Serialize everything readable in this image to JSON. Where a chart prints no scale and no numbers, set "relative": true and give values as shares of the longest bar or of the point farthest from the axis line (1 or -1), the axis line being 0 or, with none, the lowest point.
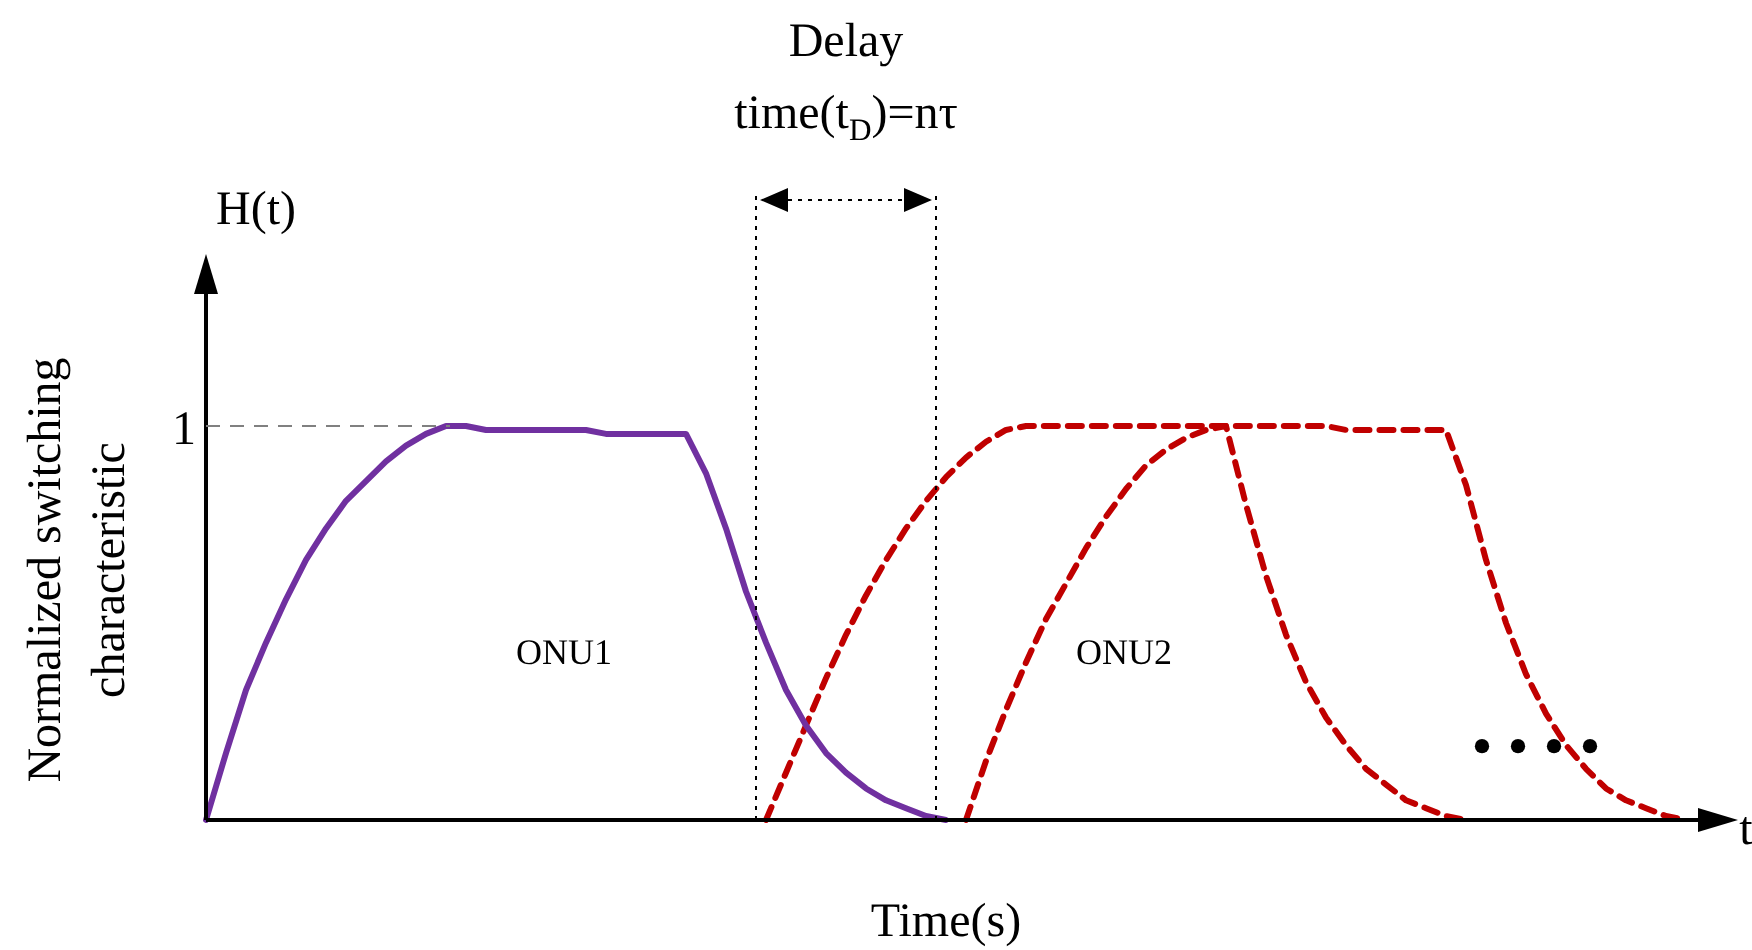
{
  "chart_data": {
    "type": "line",
    "relative": true,
    "ylabel": "Normalized switching characteristic",
    "xlabel": "Time(s)",
    "legend": false,
    "marker": "none",
    "annotations": [
      "Delay time(t$_{D}$)=nτ",
      "H(t)",
      "t",
      "1",
      "ONU1",
      "ONU2",
      "• • • •"
    ],
    "categories": [
      null,
      null,
      null,
      null,
      null,
      null,
      null,
      null,
      null,
      null,
      null,
      null,
      null,
      null,
      null,
      null,
      null,
      null,
      null,
      null,
      null,
      null,
      null,
      null,
      null,
      null,
      null,
      null,
      null,
      null,
      null,
      null,
      null,
      null,
      null,
      null,
      null,
      null,
      null,
      null,
      null,
      null,
      null,
      null,
      null,
      null,
      null,
      null,
      null,
      null,
      null,
      null,
      null,
      null,
      null,
      null,
      null,
      null,
      null,
      null,
      null,
      null,
      null,
      null,
      null,
      null,
      null,
      null,
      null,
      null,
      null,
      null,
      null,
      null,
      null
    ],
    "series": [
      {
        "color": "#7030a0",
        "line_style": "solid",
        "values": [
          0,
          0.17,
          0.33,
          0.45,
          0.56,
          0.66,
          0.74,
          0.81,
          0.86,
          0.91,
          0.95,
          0.98,
          1,
          1,
          0.99,
          0.99,
          0.99,
          0.99,
          0.99,
          0.99,
          0.98,
          0.98,
          0.98,
          0.98,
          0.98,
          0.88,
          0.74,
          0.58,
          0.45,
          0.33,
          0.24,
          0.17,
          0.12,
          0.08,
          0.05,
          0.03,
          0.01,
          0,
          null,
          null,
          null,
          null,
          null,
          null,
          null,
          null,
          null,
          null,
          null,
          null,
          null,
          null,
          null,
          null,
          null,
          null,
          null,
          null,
          null,
          null,
          null,
          null,
          null,
          null,
          null,
          null,
          null,
          null,
          null,
          null,
          null,
          null,
          null,
          null,
          null
        ]
      },
      {
        "color": "#c00000",
        "line_style": "dashed",
        "values": [
          null,
          null,
          null,
          null,
          null,
          null,
          null,
          null,
          null,
          null,
          null,
          null,
          null,
          null,
          null,
          null,
          null,
          null,
          null,
          null,
          null,
          null,
          null,
          null,
          null,
          null,
          null,
          null,
          0,
          0.12,
          0.24,
          0.36,
          0.47,
          0.57,
          0.66,
          0.74,
          0.81,
          0.87,
          0.92,
          0.96,
          0.99,
          1,
          1,
          1,
          1,
          1,
          1,
          1,
          1,
          1,
          1,
          1,
          1,
          1,
          1,
          1,
          1,
          0.99,
          0.99,
          0.99,
          0.99,
          0.99,
          0.99,
          0.85,
          0.66,
          0.5,
          0.37,
          0.27,
          0.19,
          0.13,
          0.08,
          0.05,
          0.03,
          0.01,
          0
        ]
      },
      {
        "color": "#c00000",
        "line_style": "dashed",
        "values": [
          null,
          null,
          null,
          null,
          null,
          null,
          null,
          null,
          null,
          null,
          null,
          null,
          null,
          null,
          null,
          null,
          null,
          null,
          null,
          null,
          null,
          null,
          null,
          null,
          null,
          null,
          null,
          null,
          null,
          null,
          null,
          null,
          null,
          null,
          null,
          null,
          null,
          null,
          0,
          0.15,
          0.28,
          0.4,
          0.51,
          0.6,
          0.69,
          0.77,
          0.84,
          0.9,
          0.94,
          0.97,
          0.99,
          1,
          0.8,
          0.62,
          0.47,
          0.35,
          0.26,
          0.19,
          0.13,
          0.09,
          0.05,
          0.03,
          0.01,
          0,
          null,
          null,
          null,
          null,
          null,
          null,
          null,
          null,
          null,
          null,
          null
        ]
      }
    ]
  }
}
